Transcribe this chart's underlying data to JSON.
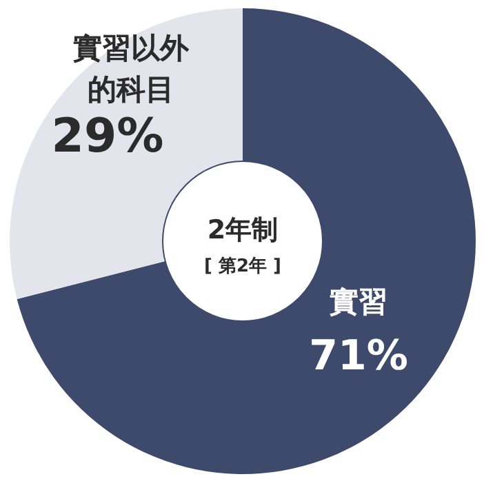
{
  "chart_data": {
    "type": "donut",
    "title": "2年制",
    "subtitle": "[ 第2年 ]",
    "categories": [
      "實習",
      "實習以外的科目"
    ],
    "values": [
      71,
      29
    ],
    "colors": [
      "#3d4a6b",
      "#e4e4ec"
    ],
    "value_labels": [
      "71%",
      "29%"
    ]
  }
}
